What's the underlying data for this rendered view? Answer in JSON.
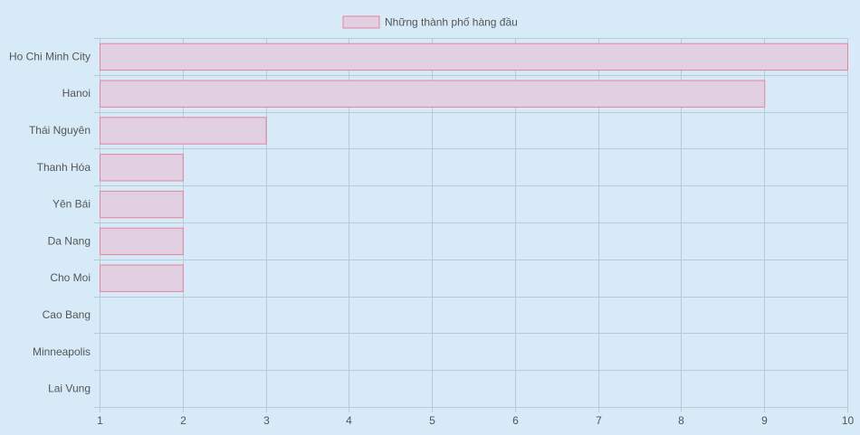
{
  "chart_data": {
    "type": "bar",
    "orientation": "horizontal",
    "categories": [
      "Ho Chi Minh City",
      "Hanoi",
      "Thái Nguyên",
      "Thanh Hóa",
      "Yên Bái",
      "Da Nang",
      "Cho Moi",
      "Cao Bang",
      "Minneapolis",
      "Lai Vung"
    ],
    "series": [
      {
        "name": "Những thành phố hàng đầu",
        "values": [
          10,
          9,
          3,
          2,
          2,
          2,
          2,
          1,
          1,
          1
        ]
      }
    ],
    "xlim": [
      1,
      10
    ],
    "x_ticks": [
      "1",
      "2",
      "3",
      "4",
      "5",
      "6",
      "7",
      "8",
      "9",
      "10"
    ],
    "grid": true,
    "legend": "top-center",
    "colors": {
      "bar_fill": "#e1cfe2",
      "bar_stroke": "#e8829d",
      "grid": "#b9c9d6",
      "background": "#d6ebf7"
    }
  }
}
